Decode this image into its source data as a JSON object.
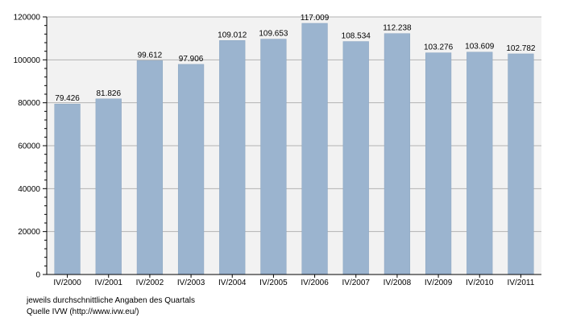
{
  "chart_data": {
    "type": "bar",
    "categories": [
      "IV/2000",
      "IV/2001",
      "IV/2002",
      "IV/2003",
      "IV/2004",
      "IV/2005",
      "IV/2006",
      "IV/2007",
      "IV/2008",
      "IV/2009",
      "IV/2010",
      "IV/2011"
    ],
    "values": [
      79426,
      81826,
      99612,
      97906,
      109012,
      109653,
      117009,
      108534,
      112238,
      103276,
      103609,
      102782
    ],
    "data_labels": [
      "79.426",
      "81.826",
      "99.612",
      "97.906",
      "109.012",
      "109.653",
      "117.009",
      "108.534",
      "112.238",
      "103.276",
      "103.609",
      "102.782"
    ],
    "title": "",
    "xlabel": "",
    "ylabel": "",
    "ylim": [
      0,
      120000
    ],
    "yticks": [
      0,
      20000,
      40000,
      60000,
      80000,
      100000,
      120000
    ],
    "ytick_labels": [
      "0",
      "20000",
      "40000",
      "60000",
      "80000",
      "100000",
      "120000"
    ],
    "grid": true,
    "bar_color": "#9bb4cf"
  },
  "notes": {
    "line1": "jeweils durchschnittliche Angaben des Quartals",
    "line2": "Quelle IVW (http://www.ivw.eu/)"
  }
}
